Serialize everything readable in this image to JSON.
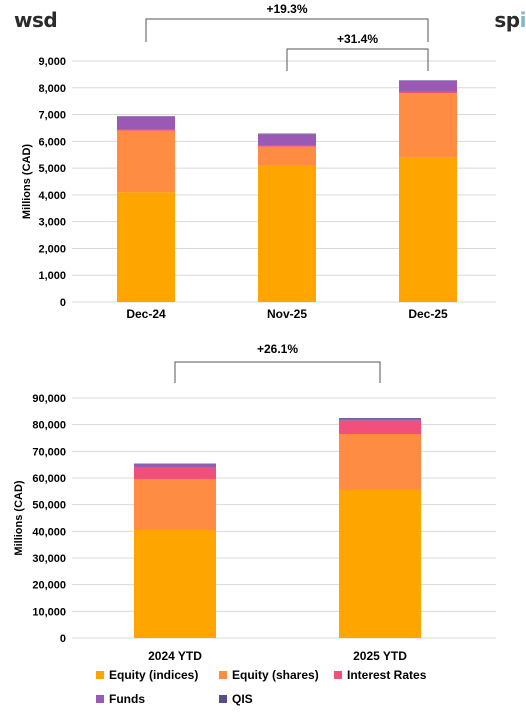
{
  "logos": {
    "left": "wsd",
    "right_prefix": "sp",
    "right_suffix": "i"
  },
  "chart_data": [
    {
      "type": "bar",
      "stacked": true,
      "categories": [
        "Dec-24",
        "Nov-25",
        "Dec-25"
      ],
      "ylabel": "Millions (CAD)",
      "ylim": [
        0,
        9000
      ],
      "yticks": [
        0,
        1000,
        2000,
        3000,
        4000,
        5000,
        6000,
        7000,
        8000,
        9000
      ],
      "ytick_labels": [
        "0",
        "1,000",
        "2,000",
        "3,000",
        "4,000",
        "5,000",
        "6,000",
        "7,000",
        "8,000",
        "9,000"
      ],
      "grid": true,
      "series": [
        {
          "name": "Equity (indices)",
          "values": [
            4100,
            5100,
            5400
          ]
        },
        {
          "name": "Equity (shares)",
          "values": [
            2300,
            700,
            2400
          ]
        },
        {
          "name": "Interest Rates",
          "values": [
            60,
            30,
            60
          ]
        },
        {
          "name": "Funds",
          "values": [
            460,
            440,
            400
          ]
        },
        {
          "name": "QIS",
          "values": [
            20,
            20,
            20
          ]
        }
      ],
      "annotations": [
        {
          "text": "+19.3%",
          "from": "Dec-24",
          "to": "Dec-25"
        },
        {
          "text": "+31.4%",
          "from": "Nov-25",
          "to": "Dec-25"
        }
      ]
    },
    {
      "type": "bar",
      "stacked": true,
      "categories": [
        "2024 YTD",
        "2025 YTD"
      ],
      "ylabel": "Millions (CAD)",
      "ylim": [
        0,
        90000
      ],
      "yticks": [
        0,
        10000,
        20000,
        30000,
        40000,
        50000,
        60000,
        70000,
        80000,
        90000
      ],
      "ytick_labels": [
        "0",
        "10,000",
        "20,000",
        "30,000",
        "40,000",
        "50,000",
        "60,000",
        "70,000",
        "80,000",
        "90,000"
      ],
      "grid": true,
      "series": [
        {
          "name": "Equity (indices)",
          "values": [
            40500,
            55500
          ]
        },
        {
          "name": "Equity (shares)",
          "values": [
            19000,
            21000
          ]
        },
        {
          "name": "Interest Rates",
          "values": [
            4300,
            5000
          ]
        },
        {
          "name": "Funds",
          "values": [
            1300,
            700
          ]
        },
        {
          "name": "QIS",
          "values": [
            300,
            300
          ]
        }
      ],
      "annotations": [
        {
          "text": "+26.1%",
          "from": "2024 YTD",
          "to": "2025 YTD"
        }
      ]
    }
  ],
  "legend": {
    "placement": "bottom",
    "items": [
      {
        "name": "Equity (indices)",
        "color": "#FFA500"
      },
      {
        "name": "Equity (shares)",
        "color": "#FF8C42"
      },
      {
        "name": "Interest Rates",
        "color": "#F0507A"
      },
      {
        "name": "Funds",
        "color": "#9B59B6"
      },
      {
        "name": "QIS",
        "color": "#5B4B8A"
      }
    ]
  }
}
